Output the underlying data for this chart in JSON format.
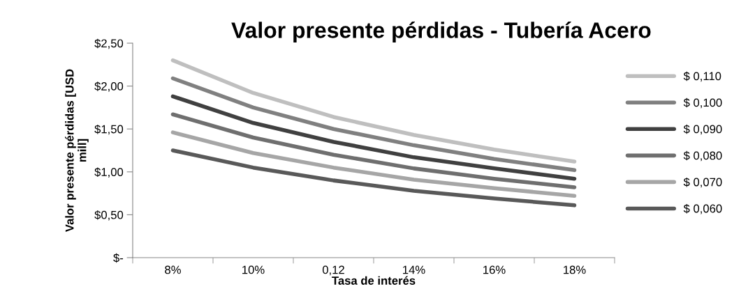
{
  "chart_data": {
    "type": "line",
    "title": "Valor presente pérdidas - Tubería Acero",
    "xlabel": "Tasa de interés",
    "ylabel": "Valor presente pérdidas [USD\nmill]",
    "categories": [
      "8%",
      "10%",
      "0,12",
      "14%",
      "16%",
      "18%"
    ],
    "series": [
      {
        "name": "$ 0,110",
        "color": "#bfbfbf",
        "values": [
          2.3,
          1.92,
          1.64,
          1.43,
          1.26,
          1.12
        ]
      },
      {
        "name": "$ 0,100",
        "color": "#808080",
        "values": [
          2.09,
          1.75,
          1.5,
          1.31,
          1.15,
          1.02
        ]
      },
      {
        "name": "$ 0,090",
        "color": "#404040",
        "values": [
          1.88,
          1.57,
          1.35,
          1.17,
          1.04,
          0.92
        ]
      },
      {
        "name": "$ 0,080",
        "color": "#6f6f6f",
        "values": [
          1.67,
          1.4,
          1.2,
          1.04,
          0.92,
          0.82
        ]
      },
      {
        "name": "$ 0,070",
        "color": "#a6a6a6",
        "values": [
          1.46,
          1.22,
          1.05,
          0.91,
          0.81,
          0.72
        ]
      },
      {
        "name": "$ 0,060",
        "color": "#595959",
        "values": [
          1.25,
          1.05,
          0.9,
          0.78,
          0.69,
          0.61
        ]
      }
    ],
    "ylim": [
      0,
      2.5
    ],
    "yticks": [
      {
        "value": 0,
        "label": "$-"
      },
      {
        "value": 0.5,
        "label": "$0,50"
      },
      {
        "value": 1.0,
        "label": "$1,00"
      },
      {
        "value": 1.5,
        "label": "$1,50"
      },
      {
        "value": 2.0,
        "label": "$2,00"
      },
      {
        "value": 2.5,
        "label": "$2,50"
      }
    ],
    "grid": false,
    "legend": "right",
    "marker": "none",
    "line_style": "solid"
  }
}
